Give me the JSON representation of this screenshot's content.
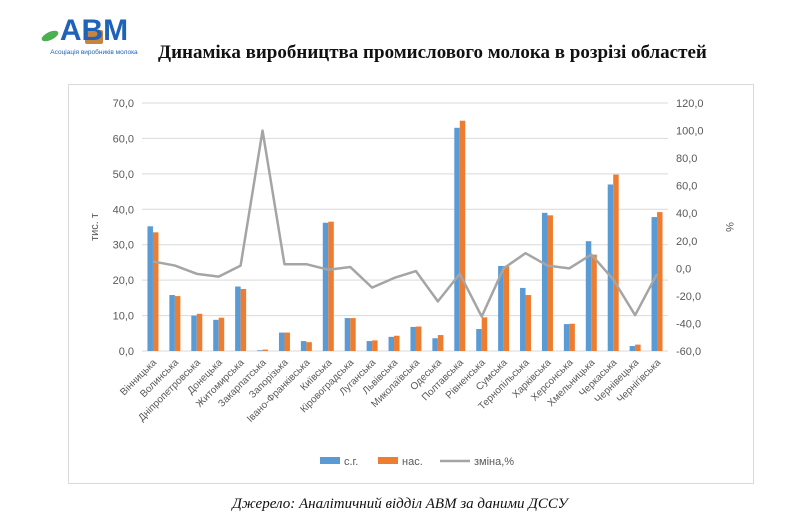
{
  "header": {
    "logo_text": "АВМ",
    "logo_subtitle": "Асоціація виробників молока",
    "title": "Динаміка виробництва промислового молока в розрізі областей"
  },
  "footer": {
    "source": "Джерело: Аналітичний відділ АВМ за даними ДССУ"
  },
  "colors": {
    "series_sg": "#5b9bd5",
    "series_nas": "#ed7d31",
    "series_change": "#a5a5a5"
  },
  "chart_data": {
    "type": "bar",
    "title": "",
    "ylabel": "тис. т",
    "y2label": "%",
    "ylim": [
      0,
      70
    ],
    "y2lim": [
      -60,
      120
    ],
    "yticks": [
      "0,0",
      "10,0",
      "20,0",
      "30,0",
      "40,0",
      "50,0",
      "60,0",
      "70,0"
    ],
    "y2ticks": [
      "-60,0",
      "-40,0",
      "-20,0",
      "0,0",
      "20,0",
      "40,0",
      "60,0",
      "80,0",
      "100,0",
      "120,0"
    ],
    "grid": true,
    "legend_position": "bottom",
    "categories": [
      "Вінницька",
      "Волинська",
      "Дніпропетровська",
      "Донецька",
      "Житомирська",
      "Закарпатська",
      "Запорізька",
      "Івано-Франківська",
      "Київська",
      "Кіровоградська",
      "Луганська",
      "Львівська",
      "Миколаївська",
      "Одеська",
      "Полтавська",
      "Рівненська",
      "Сумська",
      "Тернопільська",
      "Харківська",
      "Херсонська",
      "Хмельницька",
      "Черкаська",
      "Чернівецька",
      "Чернігівська"
    ],
    "series": [
      {
        "name": "с.г.",
        "axis": "left",
        "kind": "bar",
        "values": [
          35.2,
          15.8,
          10.0,
          8.8,
          18.2,
          0.2,
          5.2,
          2.8,
          36.2,
          9.3,
          2.8,
          4.0,
          6.8,
          3.6,
          63.0,
          6.2,
          24.0,
          17.8,
          39.0,
          7.6,
          31.0,
          47.0,
          1.4,
          37.8
        ]
      },
      {
        "name": "нас.",
        "axis": "left",
        "kind": "bar",
        "values": [
          33.5,
          15.5,
          10.5,
          9.4,
          17.5,
          0.4,
          5.2,
          2.5,
          36.5,
          9.3,
          3.0,
          4.3,
          6.9,
          4.5,
          65.0,
          9.5,
          24.0,
          15.8,
          38.3,
          7.7,
          27.2,
          49.8,
          1.8,
          39.2
        ]
      },
      {
        "name": "зміна,%",
        "axis": "right",
        "kind": "line",
        "values": [
          5,
          2,
          -4,
          -6,
          2,
          100,
          3,
          3,
          -1,
          1,
          -14,
          -7,
          -2,
          -24,
          -4,
          -35,
          0,
          11,
          2,
          0,
          10,
          -8,
          -34,
          -4
        ]
      }
    ]
  }
}
